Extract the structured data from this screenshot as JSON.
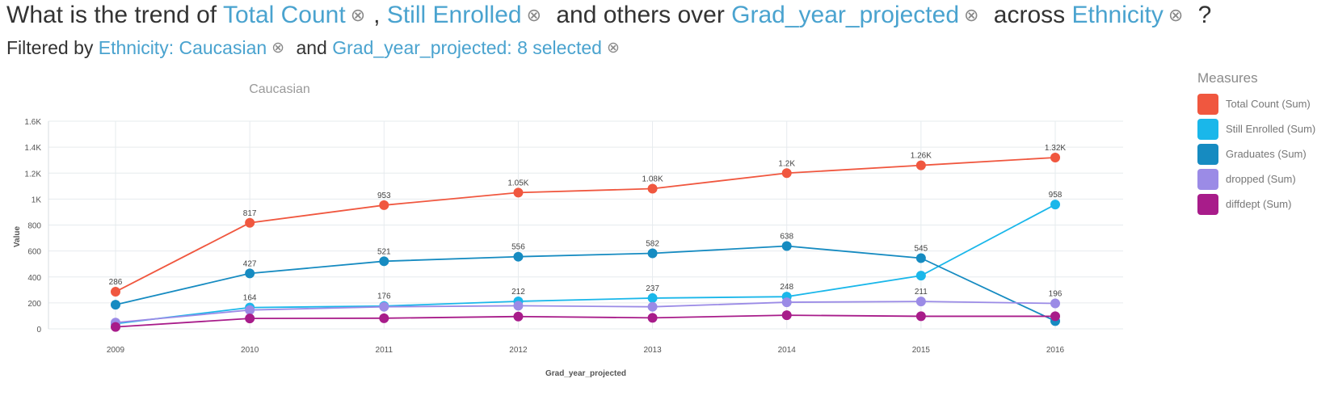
{
  "question": {
    "prefix": "What is the trend of",
    "measure1": "Total Count",
    "comma": ",",
    "measure2": "Still Enrolled",
    "mid1": "and others over",
    "dimension": "Grad_year_projected",
    "mid2": "across",
    "breakdown": "Ethnicity",
    "suffix": "?"
  },
  "filter": {
    "prefix": "Filtered by",
    "filter1": "Ethnicity: Caucasian",
    "and": "and",
    "filter2": "Grad_year_projected: 8 selected"
  },
  "icons": {
    "remove": "close-circle-icon"
  },
  "legend": {
    "title": "Measures",
    "items": [
      {
        "label": "Total Count (Sum)",
        "color": "#f0573f"
      },
      {
        "label": "Still Enrolled (Sum)",
        "color": "#1ab7ea"
      },
      {
        "label": "Graduates (Sum)",
        "color": "#168bc1"
      },
      {
        "label": "dropped (Sum)",
        "color": "#9b8be6"
      },
      {
        "label": "diffdept (Sum)",
        "color": "#a81c8a"
      }
    ]
  },
  "chart_data": {
    "type": "line",
    "title": "Caucasian",
    "xlabel": "Grad_year_projected",
    "ylabel": "Value",
    "categories": [
      "2009",
      "2010",
      "2011",
      "2012",
      "2013",
      "2014",
      "2015",
      "2016"
    ],
    "ylim": [
      0,
      1600
    ],
    "yticks": [
      0,
      200,
      400,
      600,
      800,
      1000,
      1200,
      1400,
      1600
    ],
    "ytick_labels": [
      "0",
      "200",
      "400",
      "600",
      "800",
      "1K",
      "1.2K",
      "1.4K",
      "1.6K"
    ],
    "grid": true,
    "legend_position": "right",
    "series": [
      {
        "name": "Total Count (Sum)",
        "color": "#f0573f",
        "values": [
          286,
          817,
          953,
          1050,
          1080,
          1200,
          1260,
          1320
        ],
        "labels": [
          "286",
          "817",
          "953",
          "1.05K",
          "1.08K",
          "1.2K",
          "1.26K",
          "1.32K"
        ]
      },
      {
        "name": "Still Enrolled (Sum)",
        "color": "#1ab7ea",
        "values": [
          40,
          164,
          176,
          212,
          237,
          248,
          410,
          958
        ],
        "labels": [
          "",
          "164",
          "176",
          "212",
          "237",
          "248",
          "",
          "958"
        ]
      },
      {
        "name": "Graduates (Sum)",
        "color": "#168bc1",
        "values": [
          186,
          427,
          521,
          556,
          582,
          638,
          545,
          60
        ],
        "labels": [
          "",
          "427",
          "521",
          "556",
          "582",
          "638",
          "545",
          ""
        ]
      },
      {
        "name": "dropped (Sum)",
        "color": "#9b8be6",
        "values": [
          48,
          145,
          170,
          178,
          170,
          205,
          211,
          196
        ],
        "labels": [
          "",
          "",
          "",
          "",
          "",
          "",
          "211",
          "196"
        ]
      },
      {
        "name": "diffdept (Sum)",
        "color": "#a81c8a",
        "values": [
          15,
          80,
          82,
          95,
          85,
          105,
          97,
          97
        ],
        "labels": [
          "",
          "",
          "",
          "",
          "",
          "",
          "",
          ""
        ]
      }
    ]
  }
}
